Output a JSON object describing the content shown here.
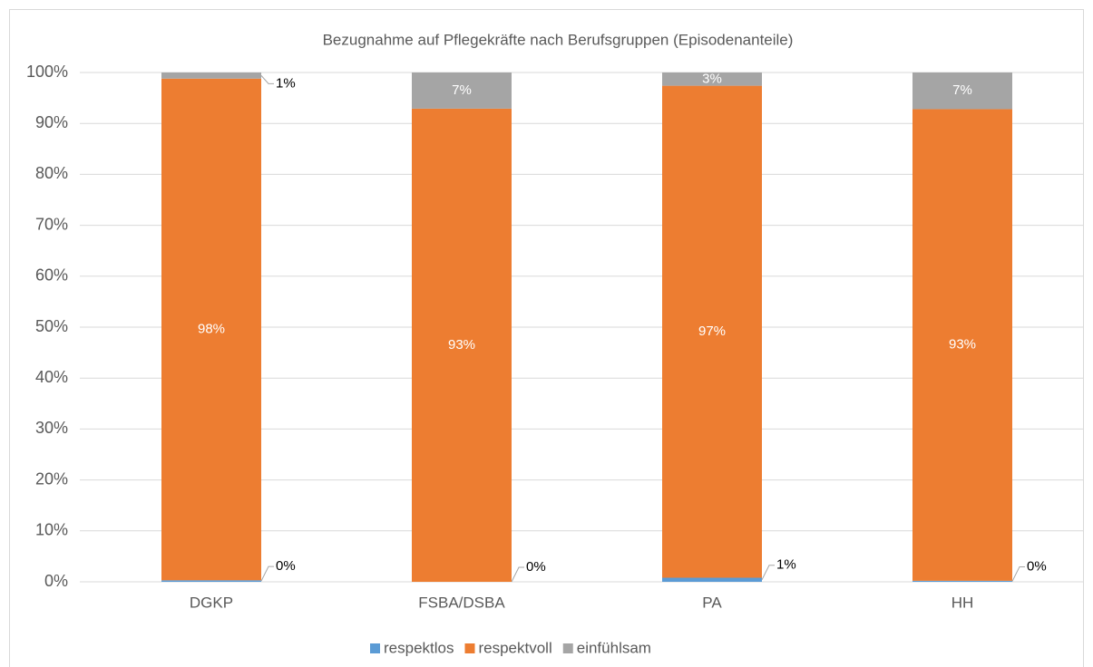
{
  "chart_data": {
    "type": "stacked_bar",
    "title": "Bezugnahme auf Pflegekräfte nach Berufsgruppen (Episodenanteile)",
    "categories": [
      "DGKP",
      "FSBA/DSBA",
      "PA",
      "HH"
    ],
    "series": [
      {
        "name": "respektlos",
        "color": "#5b9bd5",
        "values": [
          0.3,
          0,
          0.8,
          0.2
        ],
        "value_labels": [
          "0%",
          "0%",
          "1%",
          "0%"
        ]
      },
      {
        "name": "respektvoll",
        "color": "#ed7d31",
        "values": [
          98.5,
          92.9,
          96.6,
          92.6
        ],
        "value_labels": [
          "98%",
          "93%",
          "97%",
          "93%"
        ]
      },
      {
        "name": "einfühlsam",
        "color": "#a5a5a5",
        "values": [
          1.2,
          7.1,
          2.6,
          7.2
        ],
        "value_labels": [
          "1%",
          "7%",
          "3%",
          "7%"
        ]
      }
    ],
    "ylim": [
      0,
      100
    ],
    "yticks": [
      {
        "value": 0,
        "label": "0%"
      },
      {
        "value": 10,
        "label": "10%"
      },
      {
        "value": 20,
        "label": "20%"
      },
      {
        "value": 30,
        "label": "30%"
      },
      {
        "value": 40,
        "label": "40%"
      },
      {
        "value": 50,
        "label": "50%"
      },
      {
        "value": 60,
        "label": "60%"
      },
      {
        "value": 70,
        "label": "70%"
      },
      {
        "value": 80,
        "label": "80%"
      },
      {
        "value": 90,
        "label": "90%"
      },
      {
        "value": 100,
        "label": "100%"
      }
    ],
    "grid": true,
    "legend": "bottom"
  }
}
